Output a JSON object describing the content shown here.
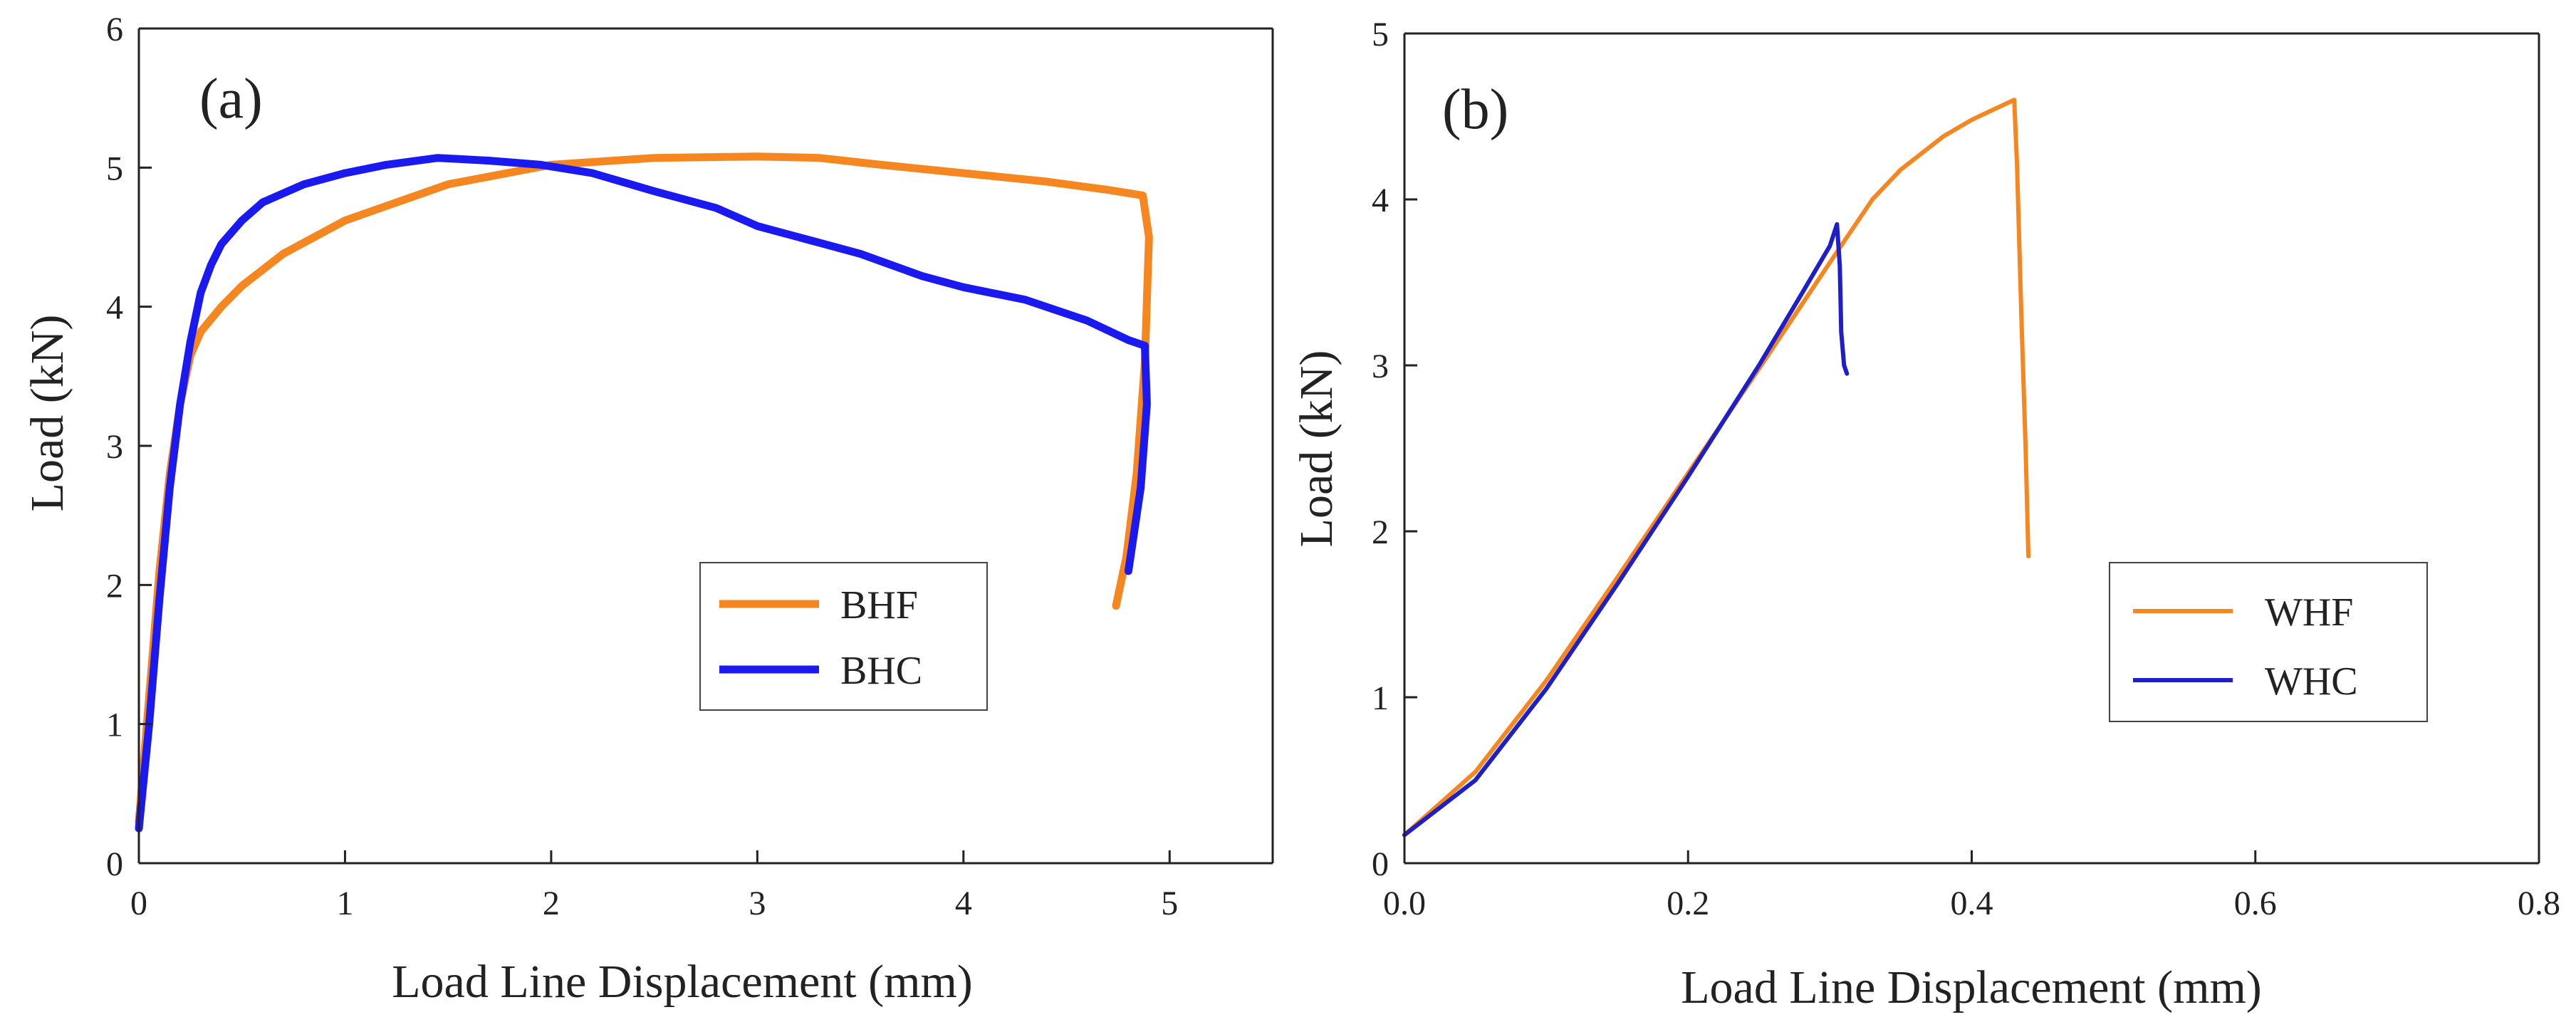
{
  "chart_data": [
    {
      "type": "line",
      "panel_label": "(a)",
      "xlabel": "Load Line Displacement (mm)",
      "ylabel": "Load (kN)",
      "xlim": [
        0,
        5.5
      ],
      "ylim": [
        0,
        6
      ],
      "xticks": [
        0,
        1,
        2,
        3,
        4,
        5
      ],
      "xtick_labels": [
        "0",
        "1",
        "2",
        "3",
        "4",
        "5"
      ],
      "yticks": [
        0,
        1,
        2,
        3,
        4,
        5,
        6
      ],
      "ytick_labels": [
        "0",
        "1",
        "2",
        "3",
        "4",
        "5",
        "6"
      ],
      "grid": false,
      "legend_position": "center-right",
      "series": [
        {
          "name": "BHF",
          "color": "#F6861F",
          "x": [
            0,
            0.05,
            0.1,
            0.15,
            0.2,
            0.25,
            0.3,
            0.4,
            0.5,
            0.7,
            1.0,
            1.5,
            2.0,
            2.5,
            3.0,
            3.3,
            3.6,
            4.0,
            4.4,
            4.7,
            4.87,
            4.9,
            4.88,
            4.84,
            4.79,
            4.74
          ],
          "y": [
            0.3,
            1.2,
            2.1,
            2.8,
            3.3,
            3.65,
            3.82,
            4.0,
            4.15,
            4.38,
            4.62,
            4.88,
            5.02,
            5.07,
            5.08,
            5.07,
            5.02,
            4.96,
            4.9,
            4.84,
            4.8,
            4.5,
            3.6,
            2.8,
            2.2,
            1.85
          ]
        },
        {
          "name": "BHC",
          "color": "#1A1AF0",
          "x": [
            0,
            0.05,
            0.1,
            0.15,
            0.2,
            0.25,
            0.3,
            0.35,
            0.4,
            0.5,
            0.6,
            0.8,
            1.0,
            1.2,
            1.45,
            1.7,
            1.95,
            2.2,
            2.5,
            2.8,
            3.0,
            3.2,
            3.5,
            3.8,
            4.0,
            4.3,
            4.6,
            4.8,
            4.88,
            4.89,
            4.86,
            4.82,
            4.8
          ],
          "y": [
            0.25,
            1.0,
            1.9,
            2.7,
            3.3,
            3.75,
            4.1,
            4.3,
            4.45,
            4.62,
            4.75,
            4.88,
            4.96,
            5.02,
            5.07,
            5.05,
            5.02,
            4.96,
            4.83,
            4.71,
            4.58,
            4.5,
            4.38,
            4.22,
            4.14,
            4.05,
            3.9,
            3.76,
            3.72,
            3.3,
            2.7,
            2.3,
            2.1
          ]
        }
      ]
    },
    {
      "type": "line",
      "panel_label": "(b)",
      "xlabel": "Load Line Displacement (mm)",
      "ylabel": "Load (kN)",
      "xlim": [
        0,
        0.8
      ],
      "ylim": [
        0,
        5
      ],
      "xticks": [
        0,
        0.2,
        0.4,
        0.6,
        0.8
      ],
      "xtick_labels": [
        "0.0",
        "0.2",
        "0.4",
        "0.6",
        "0.8"
      ],
      "yticks": [
        0,
        1,
        2,
        3,
        4,
        5
      ],
      "ytick_labels": [
        "0",
        "1",
        "2",
        "3",
        "4",
        "5"
      ],
      "grid": false,
      "legend_position": "center-right",
      "series": [
        {
          "name": "WHF",
          "color": "#F6861F",
          "x": [
            0,
            0.05,
            0.1,
            0.15,
            0.2,
            0.25,
            0.3,
            0.33,
            0.35,
            0.38,
            0.4,
            0.42,
            0.43,
            0.432,
            0.435,
            0.438,
            0.44
          ],
          "y": [
            0.17,
            0.55,
            1.1,
            1.72,
            2.35,
            2.98,
            3.62,
            4.0,
            4.18,
            4.38,
            4.48,
            4.56,
            4.6,
            4.2,
            3.3,
            2.5,
            1.85
          ]
        },
        {
          "name": "WHC",
          "color": "#1F1FC8",
          "x": [
            0,
            0.05,
            0.1,
            0.15,
            0.2,
            0.25,
            0.28,
            0.3,
            0.305,
            0.307,
            0.308,
            0.31,
            0.312
          ],
          "y": [
            0.17,
            0.5,
            1.05,
            1.68,
            2.33,
            3.0,
            3.43,
            3.72,
            3.85,
            3.6,
            3.2,
            3.0,
            2.95
          ]
        }
      ]
    }
  ]
}
